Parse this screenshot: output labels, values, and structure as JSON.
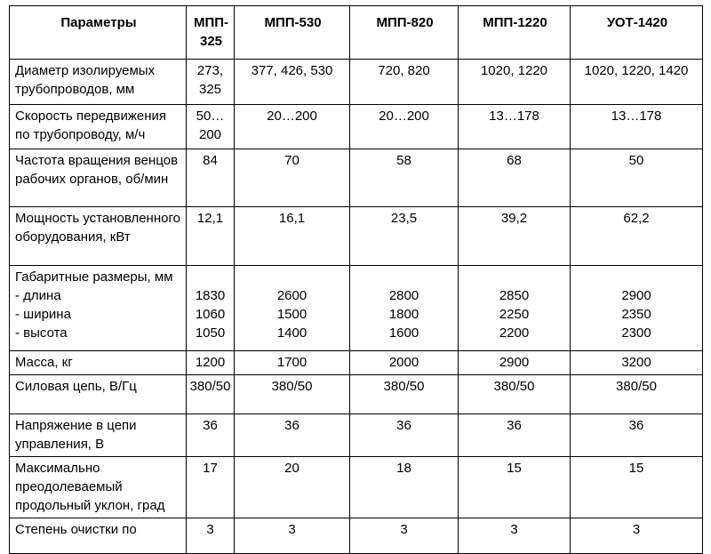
{
  "table": {
    "headers": [
      "Параметры",
      "МПП-325",
      "МПП-530",
      "МПП-820",
      "МПП-1220",
      "УОТ-1420"
    ],
    "rows": [
      {
        "param": "Диаметр изолируемых трубопроводов, мм",
        "values": [
          "273, 325",
          "377, 426, 530",
          "720, 820",
          "1020, 1220",
          "1020, 1220, 1420"
        ]
      },
      {
        "param": "Скорость передвижения по трубопроводу, м/ч",
        "values": [
          "50…200",
          "20…200",
          "20…200",
          "13…178",
          "13…178"
        ]
      },
      {
        "param": "Частота вращения венцов рабочих органов, об/мин",
        "values": [
          "84",
          "70",
          "58",
          "68",
          "50"
        ]
      },
      {
        "param": "Мощность установленного оборудования, кВт",
        "values": [
          "12,1",
          "16,1",
          "23,5",
          "39,2",
          "62,2"
        ]
      },
      {
        "param": "Габаритные размеры, мм",
        "sub": [
          {
            "label": "- длина",
            "values": [
              "1830",
              "2600",
              "2800",
              "2850",
              "2900"
            ]
          },
          {
            "label": "- ширина",
            "values": [
              "1060",
              "1500",
              "1800",
              "2250",
              "2350"
            ]
          },
          {
            "label": "- высота",
            "values": [
              "1050",
              "1400",
              "1600",
              "2200",
              "2300"
            ]
          }
        ]
      },
      {
        "param": "Масса, кг",
        "values": [
          "1200",
          "1700",
          "2000",
          "2900",
          "3200"
        ]
      },
      {
        "param": "Силовая цепь, В/Гц",
        "values": [
          "380/50",
          "380/50",
          "380/50",
          "380/50",
          "380/50"
        ]
      },
      {
        "param": "Напряжение в цепи управления, В",
        "values": [
          "36",
          "36",
          "36",
          "36",
          "36"
        ]
      },
      {
        "param": "Максимально преодолеваемый продольный уклон, град",
        "values": [
          "17",
          "20",
          "18",
          "15",
          "15"
        ]
      },
      {
        "param": "Степень очистки по",
        "values": [
          "3",
          "3",
          "3",
          "3",
          "3"
        ]
      }
    ]
  }
}
